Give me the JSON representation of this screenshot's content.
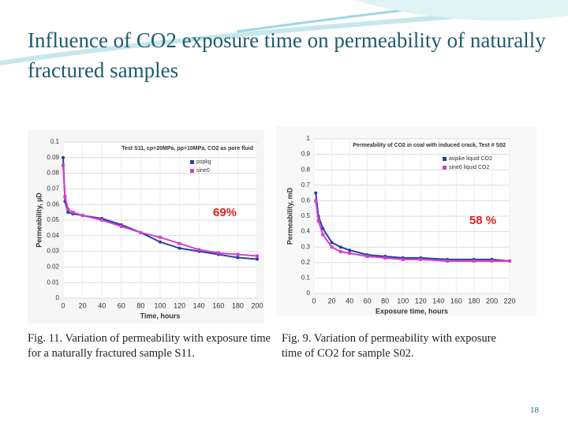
{
  "title": "Influence of CO2 exposure time on permeability of naturally fractured samples",
  "chart_data": [
    {
      "type": "line",
      "title": "Test S11, cp=20MPa, pp=10MPa, CO2 as pore fluid",
      "x_label": "Time, hours",
      "y_label": "Permeability, µD",
      "annotation": "69%",
      "legend": "upper right",
      "x": [
        0,
        2,
        5,
        10,
        20,
        40,
        60,
        80,
        100,
        120,
        140,
        160,
        180,
        200
      ],
      "series": [
        {
          "name": "pspkg",
          "color": "#2b3f9e",
          "values": [
            0.09,
            0.062,
            0.055,
            0.054,
            0.053,
            0.051,
            0.047,
            0.042,
            0.036,
            0.032,
            0.03,
            0.028,
            0.026,
            0.025
          ]
        },
        {
          "name": "sine0",
          "color": "#d040d0",
          "values": [
            0.085,
            0.065,
            0.057,
            0.055,
            0.053,
            0.05,
            0.046,
            0.042,
            0.039,
            0.035,
            0.031,
            0.029,
            0.028,
            0.027
          ]
        }
      ],
      "xlim": [
        0,
        200
      ],
      "xticks": [
        0,
        20,
        40,
        60,
        80,
        100,
        120,
        140,
        160,
        180,
        200
      ],
      "ylim": [
        0,
        0.1
      ],
      "yticks": [
        0,
        0.01,
        0.02,
        0.03,
        0.04,
        0.05,
        0.06,
        0.07,
        0.08,
        0.09,
        0.1
      ],
      "grid": true
    },
    {
      "type": "line",
      "title": "Permeability of CO2 in coal with induced crack, Test # S02",
      "x_label": "Exposure time, hours",
      "y_label": "Permeability, mD",
      "annotation": "58 %",
      "legend": "upper right",
      "x": [
        2,
        5,
        10,
        20,
        30,
        40,
        60,
        80,
        100,
        120,
        150,
        180,
        200,
        220
      ],
      "series": [
        {
          "name": "aspike liquid CO2",
          "color": "#2b3f9e",
          "values": [
            0.65,
            0.5,
            0.42,
            0.33,
            0.3,
            0.28,
            0.25,
            0.24,
            0.23,
            0.23,
            0.22,
            0.22,
            0.22,
            0.21
          ]
        },
        {
          "name": "sine6 liquid CO2",
          "color": "#d040d0",
          "values": [
            0.6,
            0.47,
            0.38,
            0.3,
            0.27,
            0.26,
            0.24,
            0.23,
            0.22,
            0.22,
            0.21,
            0.21,
            0.21,
            0.21
          ]
        }
      ],
      "xlim": [
        0,
        220
      ],
      "xticks": [
        0,
        20,
        40,
        60,
        80,
        100,
        120,
        140,
        160,
        180,
        200,
        220
      ],
      "ylim": [
        0,
        1
      ],
      "yticks": [
        0,
        0.1,
        0.2,
        0.3,
        0.4,
        0.5,
        0.6,
        0.7,
        0.8,
        0.9,
        1
      ],
      "grid": true
    }
  ],
  "captions": [
    "Fig. 11. Variation of permeability with exposure time for a naturally fractured sample S11.",
    "Fig. 9. Variation of permeability with exposure time of CO2 for sample S02."
  ],
  "page_number": "18"
}
